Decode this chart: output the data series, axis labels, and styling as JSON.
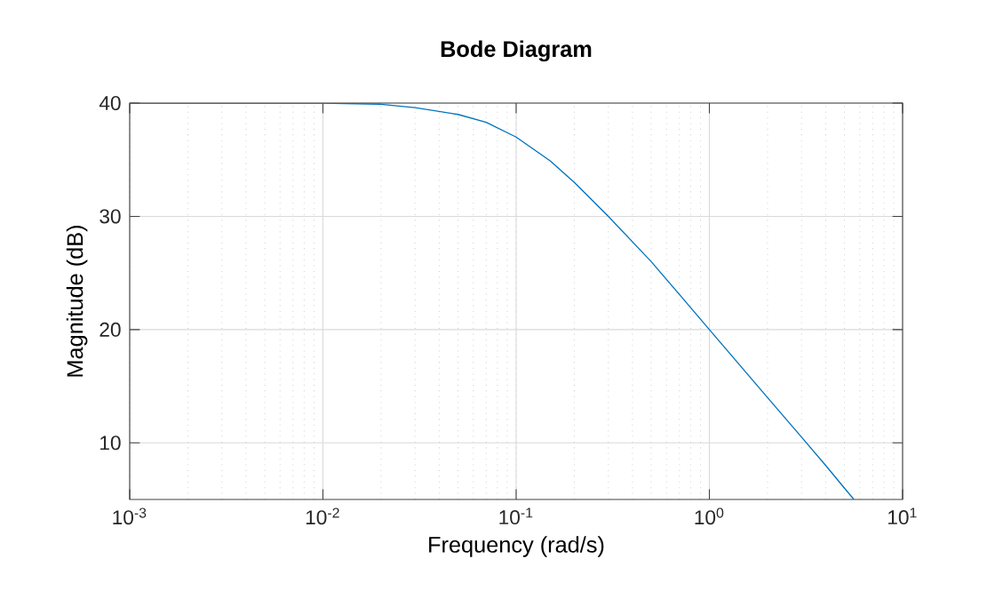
{
  "chart_data": {
    "type": "line",
    "title": "Bode Diagram",
    "xlabel": "Frequency (rad/s)",
    "ylabel": "Magnitude (dB)",
    "x": [
      0.001,
      0.005,
      0.01,
      0.02,
      0.03,
      0.05,
      0.07,
      0.1,
      0.15,
      0.2,
      0.3,
      0.5,
      0.7,
      1,
      2,
      3,
      4,
      5,
      5.6
    ],
    "series": [
      {
        "color": "#0072bd",
        "values": [
          40,
          40,
          40,
          39.9,
          39.6,
          39.0,
          38.3,
          37.0,
          34.9,
          33.0,
          30.0,
          26.0,
          23.1,
          20.0,
          14.0,
          10.5,
          8.0,
          6.0,
          5.0
        ]
      }
    ],
    "xlim": [
      0.001,
      10
    ],
    "ylim": [
      5,
      40
    ],
    "xticks": [
      {
        "value": 0.001,
        "label": "10$^{-3}$"
      },
      {
        "value": 0.01,
        "label": "10$^{-2}$"
      },
      {
        "value": 0.1,
        "label": "10$^{-1}$"
      },
      {
        "value": 1,
        "label": "10$^{0}$"
      },
      {
        "value": 10,
        "label": "10$^{1}$"
      }
    ],
    "yticks": [
      10,
      20,
      30,
      40
    ],
    "log": "x",
    "grid": true,
    "marker": "none",
    "line_style": "solid"
  }
}
